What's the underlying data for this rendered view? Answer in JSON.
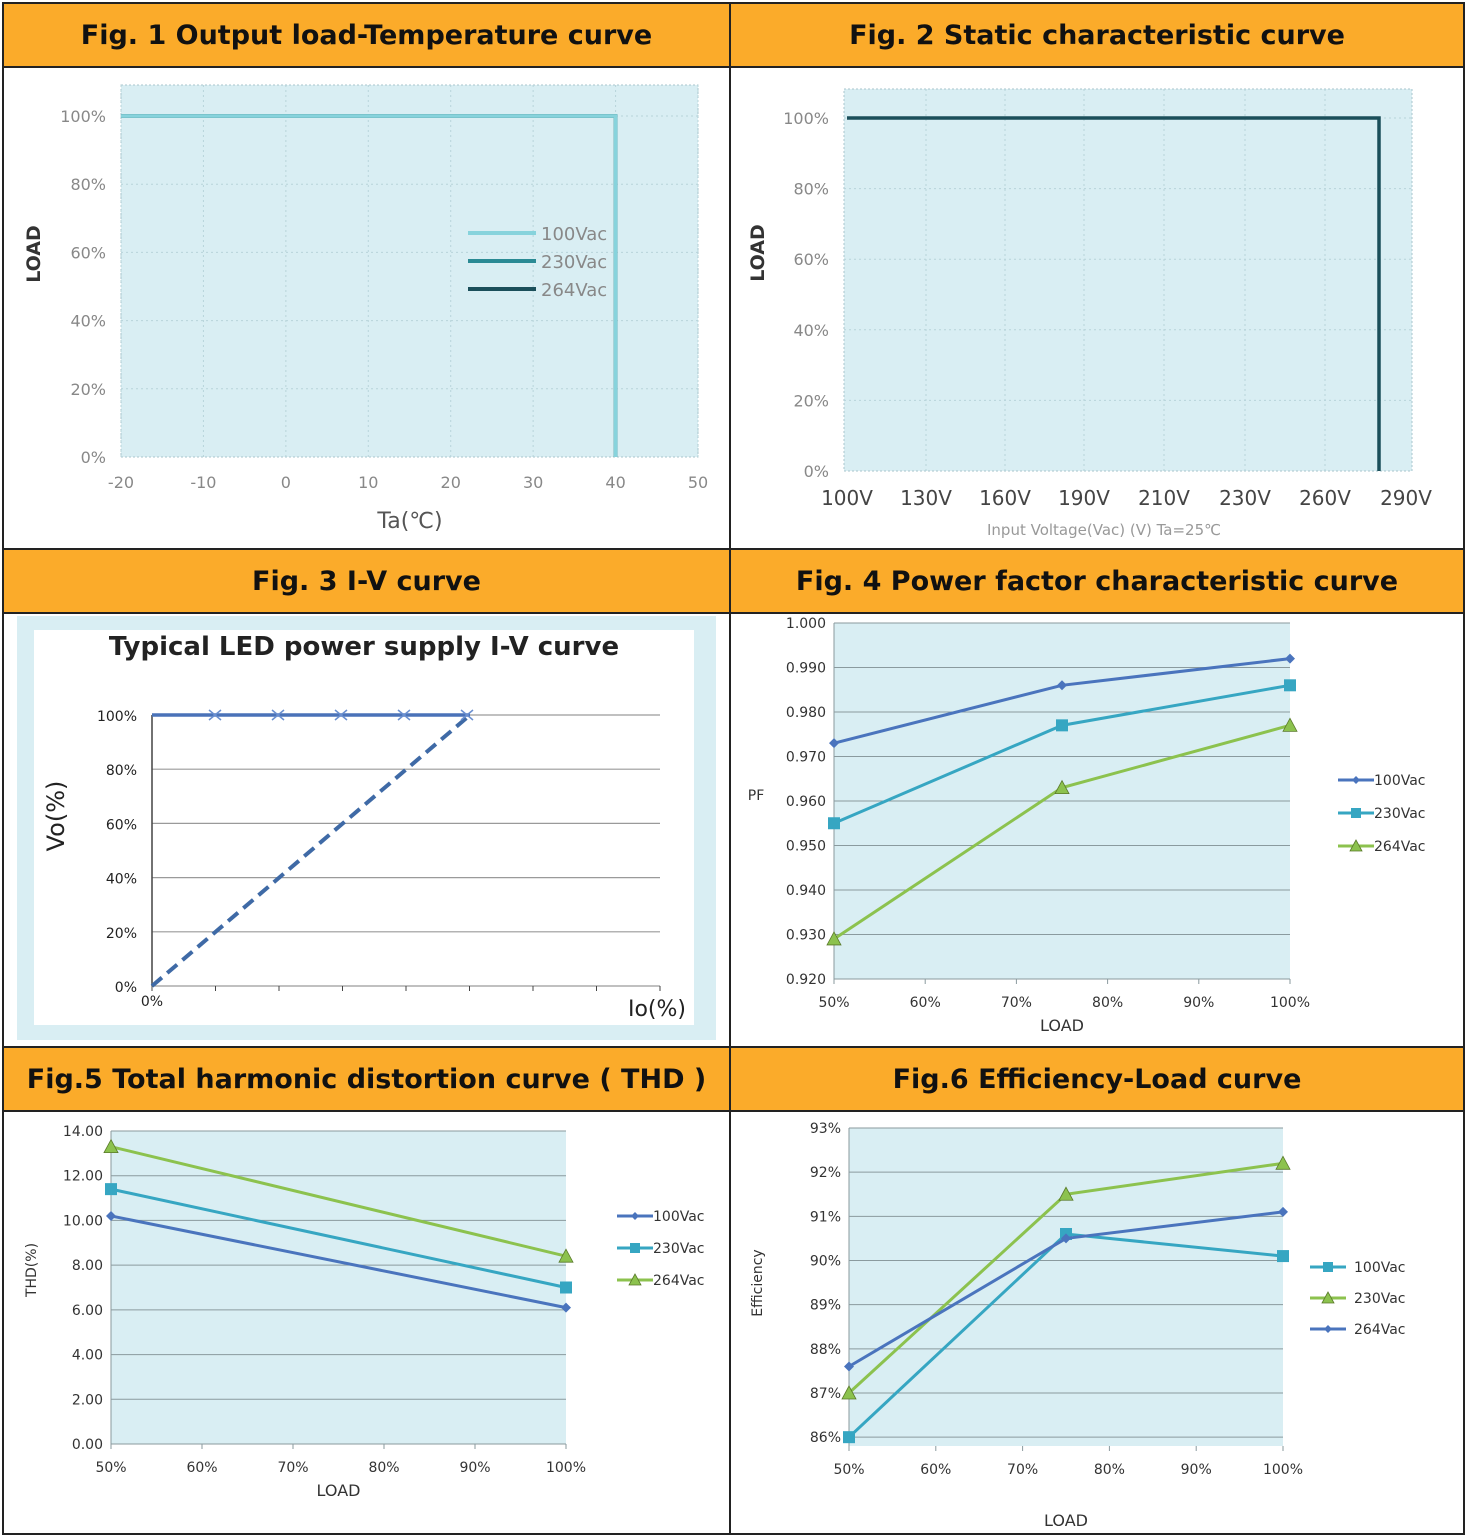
{
  "chart_data": [
    {
      "id": "fig1",
      "heading": "Fig. 1 Output load-Temperature curve",
      "type": "line",
      "xlabel": "Ta(℃)",
      "ylabel": "LOAD",
      "x_ticks": [
        "-20",
        "-10",
        "0",
        "10",
        "20",
        "30",
        "40",
        "50"
      ],
      "y_ticks": [
        "0%",
        "20%",
        "40%",
        "60%",
        "80%",
        "100%"
      ],
      "xlim": [
        -20,
        50
      ],
      "ylim": [
        0,
        100
      ],
      "grid": true,
      "legend": "center-right",
      "series": [
        {
          "name": "100Vac",
          "color": "#87d3dc",
          "x": [
            -20,
            40,
            40
          ],
          "y": [
            100,
            100,
            0
          ]
        },
        {
          "name": "230Vac",
          "color": "#2a8a94",
          "x": [
            -20,
            40,
            40
          ],
          "y": [
            100,
            100,
            0
          ]
        },
        {
          "name": "264Vac",
          "color": "#1b4f5a",
          "x": [
            -20,
            40,
            40
          ],
          "y": [
            100,
            100,
            0
          ]
        }
      ]
    },
    {
      "id": "fig2",
      "heading": "Fig. 2  Static characteristic curve",
      "type": "line",
      "xlabel": "Input Voltage(Vac) (V) Ta=25℃",
      "ylabel": "LOAD",
      "categories": [
        "100V",
        "130V",
        "160V",
        "190V",
        "210V",
        "230V",
        "260V",
        "290V"
      ],
      "y_ticks": [
        "0%",
        "20%",
        "40%",
        "60%",
        "80%",
        "100%"
      ],
      "ylim": [
        0,
        100
      ],
      "grid": true,
      "series": [
        {
          "color": "#1b4f5a",
          "x": [
            "100V",
            "280V",
            "280V"
          ],
          "y": [
            100,
            100,
            0
          ]
        }
      ]
    },
    {
      "id": "fig3",
      "heading": "Fig. 3 I-V curve",
      "type": "line",
      "title": "Typical LED power supply I-V curve",
      "xlabel": "Io(%)",
      "ylabel": "Vo(%)",
      "x_ticks": [
        "0%"
      ],
      "y_ticks": [
        "0%",
        "20%",
        "40%",
        "60%",
        "80%",
        "100%"
      ],
      "ylim": [
        0,
        100
      ],
      "grid": true,
      "series": [
        {
          "style": "solid",
          "color": "#4a72b8",
          "x": [
            0,
            100
          ],
          "y": [
            100,
            100
          ]
        },
        {
          "style": "dashed",
          "color": "#3f6aa6",
          "x": [
            0,
            100
          ],
          "y": [
            0,
            100
          ]
        }
      ]
    },
    {
      "id": "fig4",
      "heading": "Fig. 4 Power factor characteristic curve",
      "type": "line",
      "xlabel": "LOAD",
      "ylabel": "PF",
      "x_ticks": [
        "50%",
        "60%",
        "70%",
        "80%",
        "90%",
        "100%"
      ],
      "y_ticks": [
        "0.920",
        "0.930",
        "0.940",
        "0.950",
        "0.960",
        "0.970",
        "0.980",
        "0.990",
        "1.000"
      ],
      "xlim": [
        50,
        100
      ],
      "ylim": [
        0.92,
        1.0
      ],
      "grid": true,
      "legend": "right",
      "series": [
        {
          "name": "100Vac",
          "color": "#4a74bd",
          "marker": "diamond",
          "x": [
            50,
            75,
            100
          ],
          "y": [
            0.973,
            0.986,
            0.992
          ]
        },
        {
          "name": "230Vac",
          "color": "#36a6c2",
          "marker": "square",
          "x": [
            50,
            75,
            100
          ],
          "y": [
            0.955,
            0.977,
            0.986
          ]
        },
        {
          "name": "264Vac",
          "color": "#8cc24e",
          "marker": "triangle",
          "x": [
            50,
            75,
            100
          ],
          "y": [
            0.929,
            0.963,
            0.977
          ]
        }
      ]
    },
    {
      "id": "fig5",
      "heading": "Fig.5 Total harmonic distortion curve ( THD )",
      "type": "line",
      "xlabel": "LOAD",
      "ylabel": "THD(%)",
      "x_ticks": [
        "50%",
        "60%",
        "70%",
        "80%",
        "90%",
        "100%"
      ],
      "y_ticks": [
        "0.00",
        "2.00",
        "4.00",
        "6.00",
        "8.00",
        "10.00",
        "12.00",
        "14.00"
      ],
      "xlim": [
        50,
        100
      ],
      "ylim": [
        0,
        14
      ],
      "grid": true,
      "legend": "right",
      "series": [
        {
          "name": "100Vac",
          "color": "#4a74bd",
          "marker": "diamond",
          "x": [
            50,
            100
          ],
          "y": [
            10.2,
            6.1
          ]
        },
        {
          "name": "230Vac",
          "color": "#36a6c2",
          "marker": "square",
          "x": [
            50,
            100
          ],
          "y": [
            11.4,
            7.0
          ]
        },
        {
          "name": "264Vac",
          "color": "#8cc24e",
          "marker": "triangle",
          "x": [
            50,
            100
          ],
          "y": [
            13.3,
            8.4
          ]
        }
      ]
    },
    {
      "id": "fig6",
      "heading": "Fig.6 Efficiency-Load curve",
      "type": "line",
      "xlabel": "LOAD",
      "ylabel": "Efficiency",
      "x_ticks": [
        "50%",
        "60%",
        "70%",
        "80%",
        "90%",
        "100%"
      ],
      "y_ticks": [
        "86%",
        "87%",
        "88%",
        "89%",
        "90%",
        "91%",
        "92%",
        "93%"
      ],
      "xlim": [
        50,
        100
      ],
      "ylim": [
        85.8,
        93
      ],
      "grid": true,
      "legend": "right",
      "series": [
        {
          "name": "100Vac",
          "color": "#36a6c2",
          "marker": "square",
          "x": [
            50,
            75,
            100
          ],
          "y": [
            86.0,
            90.6,
            90.1
          ]
        },
        {
          "name": "230Vac",
          "color": "#8cc24e",
          "marker": "triangle",
          "x": [
            50,
            75,
            100
          ],
          "y": [
            87.0,
            91.5,
            92.2
          ]
        },
        {
          "name": "264Vac",
          "color": "#4a74bd",
          "marker": "diamond",
          "x": [
            50,
            75,
            100
          ],
          "y": [
            87.6,
            90.5,
            91.1
          ]
        }
      ]
    }
  ]
}
